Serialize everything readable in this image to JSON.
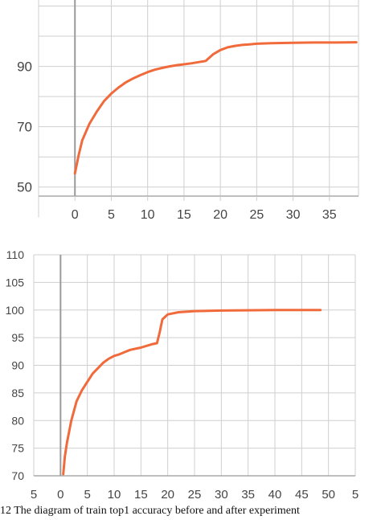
{
  "chart_data": [
    {
      "type": "line",
      "title": "",
      "xlabel": "",
      "ylabel": "",
      "xlim": [
        -5,
        39
      ],
      "ylim": [
        47,
        112
      ],
      "x_ticks": [
        0,
        5,
        10,
        15,
        20,
        25,
        30,
        35
      ],
      "y_ticks": [
        50,
        70,
        90
      ],
      "grid": true,
      "line_color": "#f06a3c",
      "series": [
        {
          "x": [
            0,
            0.5,
            1,
            2,
            3,
            4,
            5,
            6,
            7,
            8,
            9,
            10,
            11,
            12,
            13,
            14,
            15,
            16,
            17,
            18,
            19,
            20,
            21,
            22,
            23,
            24,
            25,
            27,
            30,
            33,
            36,
            38.7
          ],
          "y": [
            54.5,
            60.5,
            65.5,
            71,
            75,
            78.5,
            81,
            83,
            84.7,
            86,
            87.1,
            88.1,
            88.9,
            89.5,
            90,
            90.4,
            90.7,
            91,
            91.4,
            91.8,
            94,
            95.4,
            96.3,
            96.8,
            97.1,
            97.3,
            97.5,
            97.7,
            97.8,
            97.9,
            97.9,
            98
          ]
        }
      ]
    },
    {
      "type": "line",
      "title": "",
      "xlabel": "",
      "ylabel": "",
      "xlim": [
        -5,
        55
      ],
      "ylim": [
        70,
        110
      ],
      "x_tick_labels": [
        "5",
        "0",
        "5",
        "10",
        "15",
        "20",
        "25",
        "30",
        "35",
        "40",
        "45",
        "50",
        "5"
      ],
      "y_ticks": [
        70,
        75,
        80,
        85,
        90,
        95,
        100,
        105,
        110
      ],
      "grid": true,
      "line_color": "#f06a3c",
      "series": [
        {
          "x": [
            0.5,
            0.8,
            1.2,
            2,
            3,
            4,
            5,
            6,
            7,
            8,
            9,
            10,
            11,
            12,
            13,
            14,
            15,
            16,
            17,
            18,
            18.5,
            19,
            20,
            22,
            25,
            30,
            40,
            48.5
          ],
          "y": [
            70.3,
            73.5,
            76,
            80,
            83.5,
            85.5,
            87,
            88.5,
            89.5,
            90.5,
            91.2,
            91.7,
            92,
            92.4,
            92.8,
            93,
            93.2,
            93.5,
            93.8,
            94,
            96,
            98.3,
            99.2,
            99.6,
            99.8,
            99.9,
            100,
            100
          ]
        }
      ]
    }
  ],
  "caption": "12      The diagram of train  top1  accuracy before and after experiment"
}
